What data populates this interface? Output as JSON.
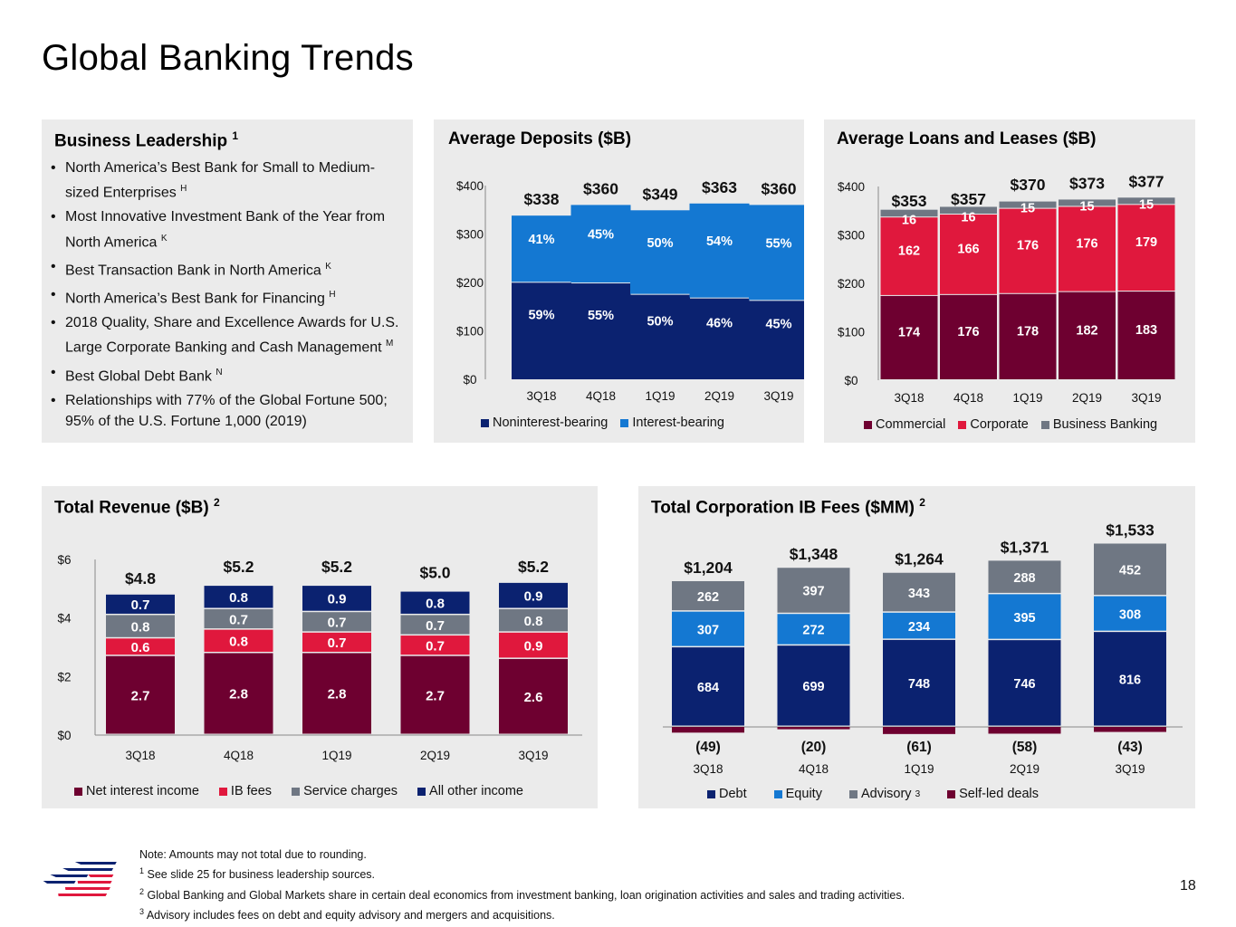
{
  "title": "Global Banking Trends",
  "colors": {
    "navy": "#0b2270",
    "blue": "#1478d2",
    "maroon": "#6e0030",
    "red": "#e0183d",
    "gray": "#6f7783",
    "panel": "#ebebeb"
  },
  "leadership": {
    "title": "Business Leadership",
    "title_sup": "1",
    "items": [
      {
        "text": "North America’s Best Bank for Small to Medium-sized Enterprises",
        "sup": "H"
      },
      {
        "text": "Most Innovative Investment Bank of the Year from North America",
        "sup": "K"
      },
      {
        "text": "Best Transaction Bank in North America",
        "sup": "K"
      },
      {
        "text": "North America’s Best Bank for Financing",
        "sup": "H"
      },
      {
        "text": "2018 Quality, Share and Excellence Awards for U.S. Large Corporate Banking and Cash Management",
        "sup": "M"
      },
      {
        "text": "Best Global Debt Bank",
        "sup": "N"
      },
      {
        "text": "Relationships with 77% of the Global Fortune 500; 95% of the U.S. Fortune 1,000 (2019)",
        "sup": ""
      }
    ]
  },
  "deposits_panel": {
    "title": "Average Deposits ($B)"
  },
  "loans_panel": {
    "title": "Average Loans and Leases ($B)"
  },
  "revenue_panel": {
    "title": "Total Revenue ($B)",
    "title_sup": "2"
  },
  "ib_panel": {
    "title": "Total Corporation IB Fees ($MM)",
    "title_sup": "2"
  },
  "chart_data": [
    {
      "id": "deposits",
      "type": "bar",
      "stacked": true,
      "title": "Average Deposits ($B)",
      "categories": [
        "3Q18",
        "4Q18",
        "1Q19",
        "2Q19",
        "3Q19"
      ],
      "totals": [
        338,
        360,
        349,
        363,
        360
      ],
      "total_labels": [
        "$338",
        "$360",
        "$349",
        "$363",
        "$360"
      ],
      "series": [
        {
          "name": "Noninterest-bearing",
          "share_pct": [
            59,
            55,
            50,
            46,
            45
          ],
          "labels": [
            "59%",
            "55%",
            "50%",
            "46%",
            "45%"
          ],
          "color": "#0b2270"
        },
        {
          "name": "Interest-bearing",
          "share_pct": [
            41,
            45,
            50,
            54,
            55
          ],
          "labels": [
            "41%",
            "45%",
            "50%",
            "54%",
            "55%"
          ],
          "color": "#1478d2"
        }
      ],
      "yticks": [
        "$0",
        "$100",
        "$200",
        "$300",
        "$400"
      ],
      "ylim": [
        0,
        400
      ],
      "legend_position": "bottom"
    },
    {
      "id": "loans",
      "type": "bar",
      "stacked": true,
      "title": "Average Loans and Leases ($B)",
      "categories": [
        "3Q18",
        "4Q18",
        "1Q19",
        "2Q19",
        "3Q19"
      ],
      "totals": [
        353,
        357,
        370,
        373,
        377
      ],
      "total_labels": [
        "$353",
        "$357",
        "$370",
        "$373",
        "$377"
      ],
      "series": [
        {
          "name": "Commercial",
          "values": [
            174,
            176,
            178,
            182,
            183
          ],
          "labels": [
            "174",
            "176",
            "178",
            "182",
            "183"
          ],
          "color": "#6e0030"
        },
        {
          "name": "Corporate",
          "values": [
            162,
            166,
            176,
            176,
            179
          ],
          "labels": [
            "162",
            "166",
            "176",
            "176",
            "179"
          ],
          "color": "#e0183d"
        },
        {
          "name": "Business Banking",
          "values": [
            16,
            16,
            15,
            15,
            15
          ],
          "labels": [
            "16",
            "16",
            "15",
            "15",
            "15"
          ],
          "color": "#6f7783"
        }
      ],
      "yticks": [
        "$0",
        "$100",
        "$200",
        "$300",
        "$400"
      ],
      "ylim": [
        0,
        400
      ],
      "legend_position": "bottom"
    },
    {
      "id": "revenue",
      "type": "bar",
      "stacked": true,
      "title": "Total Revenue ($B)",
      "categories": [
        "3Q18",
        "4Q18",
        "1Q19",
        "2Q19",
        "3Q19"
      ],
      "totals": [
        4.8,
        5.2,
        5.2,
        5.0,
        5.2
      ],
      "total_labels": [
        "$4.8",
        "$5.2",
        "$5.2",
        "$5.0",
        "$5.2"
      ],
      "series": [
        {
          "name": "Net interest income",
          "values": [
            2.7,
            2.8,
            2.8,
            2.7,
            2.6
          ],
          "labels": [
            "2.7",
            "2.8",
            "2.8",
            "2.7",
            "2.6"
          ],
          "color": "#6e0030"
        },
        {
          "name": "IB fees",
          "values": [
            0.6,
            0.8,
            0.7,
            0.7,
            0.9
          ],
          "labels": [
            "0.6",
            "0.8",
            "0.7",
            "0.7",
            "0.9"
          ],
          "color": "#e0183d"
        },
        {
          "name": "Service charges",
          "values": [
            0.8,
            0.7,
            0.7,
            0.7,
            0.8
          ],
          "labels": [
            "0.8",
            "0.7",
            "0.7",
            "0.7",
            "0.8"
          ],
          "color": "#6f7783"
        },
        {
          "name": "All other income",
          "values": [
            0.7,
            0.8,
            0.9,
            0.8,
            0.9
          ],
          "labels": [
            "0.7",
            "0.8",
            "0.9",
            "0.8",
            "0.9"
          ],
          "color": "#0b2270"
        }
      ],
      "yticks": [
        "$0",
        "$2",
        "$4",
        "$6"
      ],
      "ylim": [
        0,
        6
      ],
      "legend_position": "bottom"
    },
    {
      "id": "ibfees",
      "type": "bar",
      "stacked": true,
      "title": "Total Corporation IB Fees ($MM)",
      "categories": [
        "3Q18",
        "4Q18",
        "1Q19",
        "2Q19",
        "3Q19"
      ],
      "totals": [
        1204,
        1348,
        1264,
        1371,
        1533
      ],
      "total_labels": [
        "$1,204",
        "$1,348",
        "$1,264",
        "$1,371",
        "$1,533"
      ],
      "series": [
        {
          "name": "Debt",
          "values": [
            684,
            699,
            748,
            746,
            816
          ],
          "labels": [
            "684",
            "699",
            "748",
            "746",
            "816"
          ],
          "color": "#0b2270"
        },
        {
          "name": "Equity",
          "values": [
            307,
            272,
            234,
            395,
            308
          ],
          "labels": [
            "307",
            "272",
            "234",
            "395",
            "308"
          ],
          "color": "#1478d2"
        },
        {
          "name": "Advisory",
          "legend_sup": "3",
          "values": [
            262,
            397,
            343,
            288,
            452
          ],
          "labels": [
            "262",
            "397",
            "343",
            "288",
            "452"
          ],
          "color": "#6f7783"
        },
        {
          "name": "Self-led deals",
          "values": [
            -49,
            -20,
            -61,
            -58,
            -43
          ],
          "labels": [
            "(49)",
            "(20)",
            "(61)",
            "(58)",
            "(43)"
          ],
          "color": "#6e0030"
        }
      ],
      "legend_position": "bottom"
    }
  ],
  "footnotes": [
    {
      "sup": "",
      "text": "Note: Amounts may not total due to rounding."
    },
    {
      "sup": "1",
      "text": "See slide 25 for business leadership sources."
    },
    {
      "sup": "2",
      "text": "Global Banking and Global Markets share in certain deal economics from investment banking, loan origination activities and sales and trading activities."
    },
    {
      "sup": "3",
      "text": "Advisory includes fees on debt and equity advisory and mergers and acquisitions."
    }
  ],
  "page_number": "18"
}
